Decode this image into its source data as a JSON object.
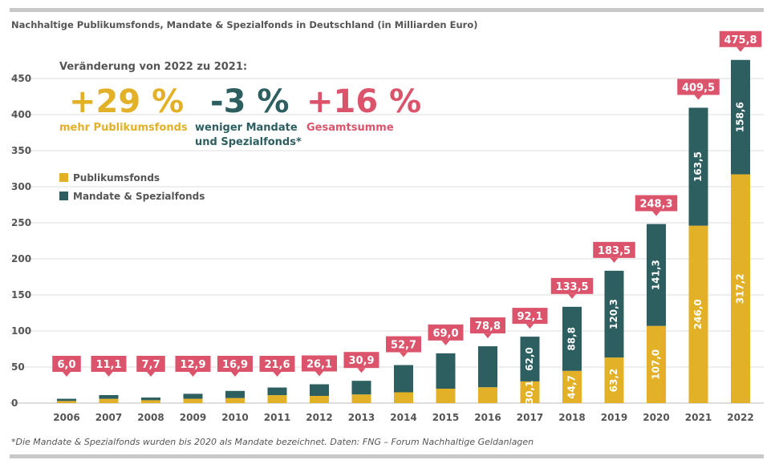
{
  "title": "Nachhaltige Publikumsfonds, Mandate & Spezialfonds in Deutschland (in Milliarden Euro)",
  "footnote": "*Die Mandate & Spezialfonds wurden bis 2020 als Mandate bezeichnet. Daten: FNG – Forum Nachhaltige Geldanlagen",
  "annotations": {
    "heading": "Veränderung von 2022 zu 2021:",
    "a1_value": "+29 %",
    "a1_label": "mehr Publikumsfonds",
    "a2_value": "-3 %",
    "a2_label1": "weniger Mandate",
    "a2_label2": "und Spezialfonds*",
    "a3_value": "+16 %",
    "a3_label": "Gesamtsumme"
  },
  "colors": {
    "publikum": "#e3b127",
    "mandate": "#2d5e60",
    "label": "#dc546c",
    "green_text": "#2d5e60",
    "yellow_text": "#e3b127",
    "red_text": "#dc546c"
  },
  "chart_data": {
    "type": "bar",
    "stacked": true,
    "title": "Nachhaltige Publikumsfonds, Mandate & Spezialfonds in Deutschland (in Milliarden Euro)",
    "categories": [
      "2006",
      "2007",
      "2008",
      "2009",
      "2010",
      "2011",
      "2012",
      "2013",
      "2014",
      "2015",
      "2016",
      "2017",
      "2018",
      "2019",
      "2020",
      "2021",
      "2022"
    ],
    "series": [
      {
        "name": "Publikumsfonds",
        "values": [
          3,
          6,
          4,
          6,
          7,
          11,
          10,
          12,
          15,
          20,
          22,
          30.1,
          44.7,
          63.2,
          107.0,
          246.0,
          317.2
        ],
        "labels": [
          "",
          "",
          "",
          "",
          "",
          "",
          "",
          "",
          "",
          "",
          "",
          "30,1",
          "44,7",
          "63,2",
          "107,0",
          "246,0",
          "317,2"
        ]
      },
      {
        "name": "Mandate & Spezialfonds",
        "values": [
          3,
          5.1,
          3.7,
          6.9,
          9.9,
          10.6,
          16.1,
          18.9,
          37.7,
          49,
          56.8,
          62.0,
          88.8,
          120.3,
          141.3,
          163.5,
          158.6
        ],
        "labels": [
          "",
          "",
          "",
          "",
          "",
          "",
          "",
          "",
          "",
          "",
          "",
          "62,0",
          "88,8",
          "120,3",
          "141,3",
          "163,5",
          "158,6"
        ]
      }
    ],
    "totals": [
      "6,0",
      "11,1",
      "7,7",
      "12,9",
      "16,9",
      "21,6",
      "26,1",
      "30,9",
      "52,7",
      "69,0",
      "78,8",
      "92,1",
      "133,5",
      "183,5",
      "248,3",
      "409,5",
      "475,8"
    ],
    "yticks": [
      "0",
      "50",
      "100",
      "150",
      "200",
      "250",
      "300",
      "350",
      "400",
      "450"
    ],
    "ylim": [
      0,
      480
    ],
    "grid": true,
    "legend": "top-left"
  }
}
